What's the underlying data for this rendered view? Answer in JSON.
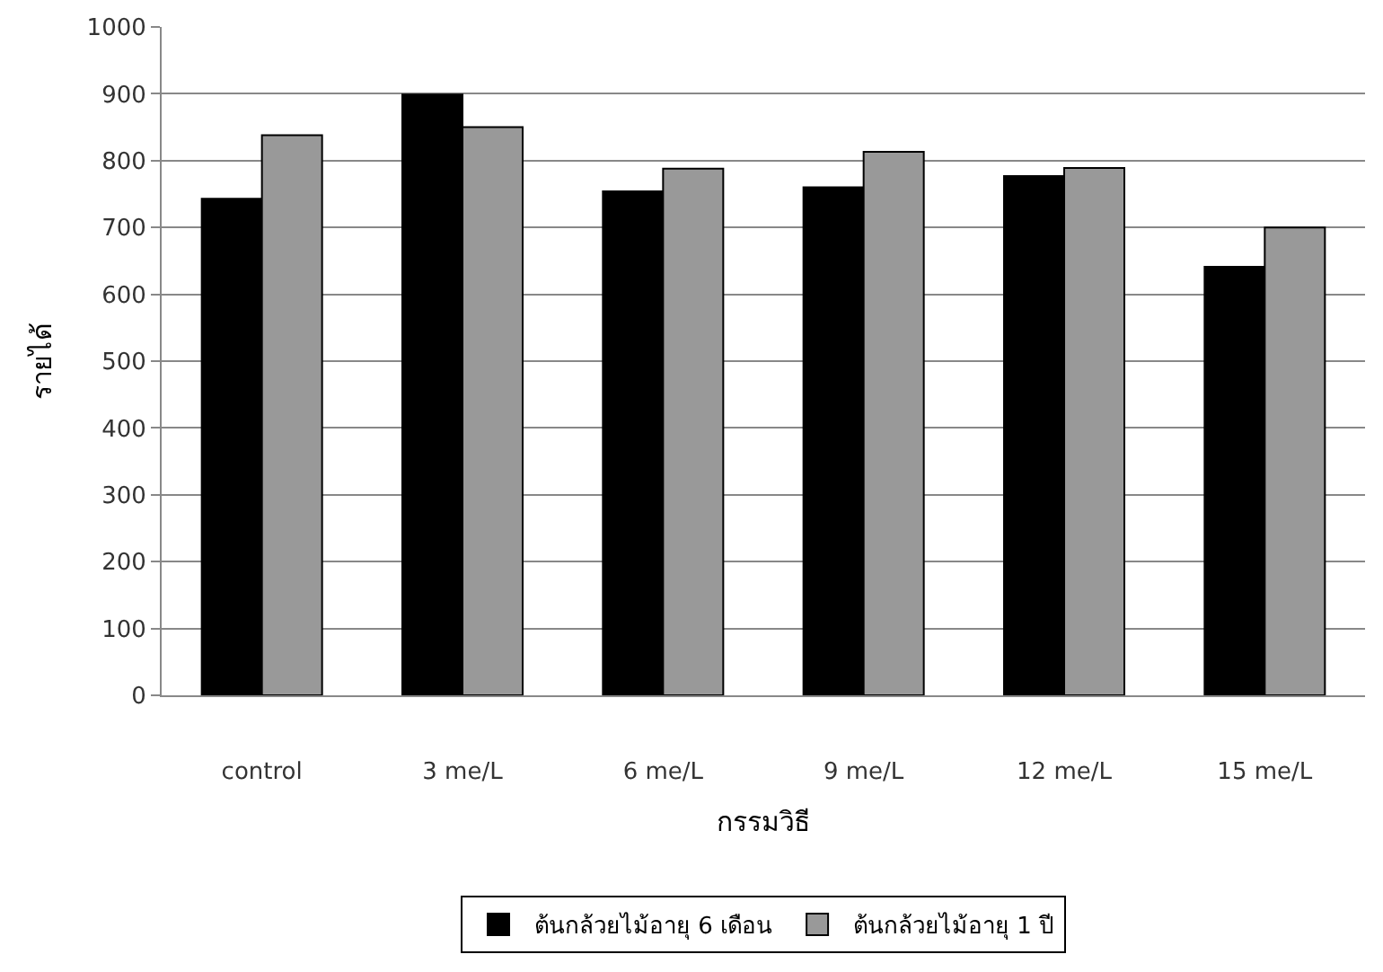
{
  "chart_data": {
    "type": "bar",
    "xlabel": "กรรมวิธี",
    "ylabel": "รายได้",
    "categories": [
      "control",
      "3 me/L",
      "6 me/L",
      "9 me/L",
      "12 me/L",
      "15 me/L"
    ],
    "series": [
      {
        "name": "ต้นกล้วยไม้อายุ 6 เดือน",
        "color": "#000000",
        "values": [
          743,
          899,
          754,
          760,
          777,
          641
        ]
      },
      {
        "name": "ต้นกล้วยไม้อายุ 1 ปี",
        "color": "#999999",
        "values": [
          838,
          850,
          788,
          813,
          789,
          700
        ]
      }
    ],
    "ylim": [
      0,
      1000
    ],
    "yticks": [
      0,
      100,
      200,
      300,
      400,
      500,
      600,
      700,
      800,
      900,
      1000
    ],
    "grid": "y",
    "legend": "bottom"
  }
}
